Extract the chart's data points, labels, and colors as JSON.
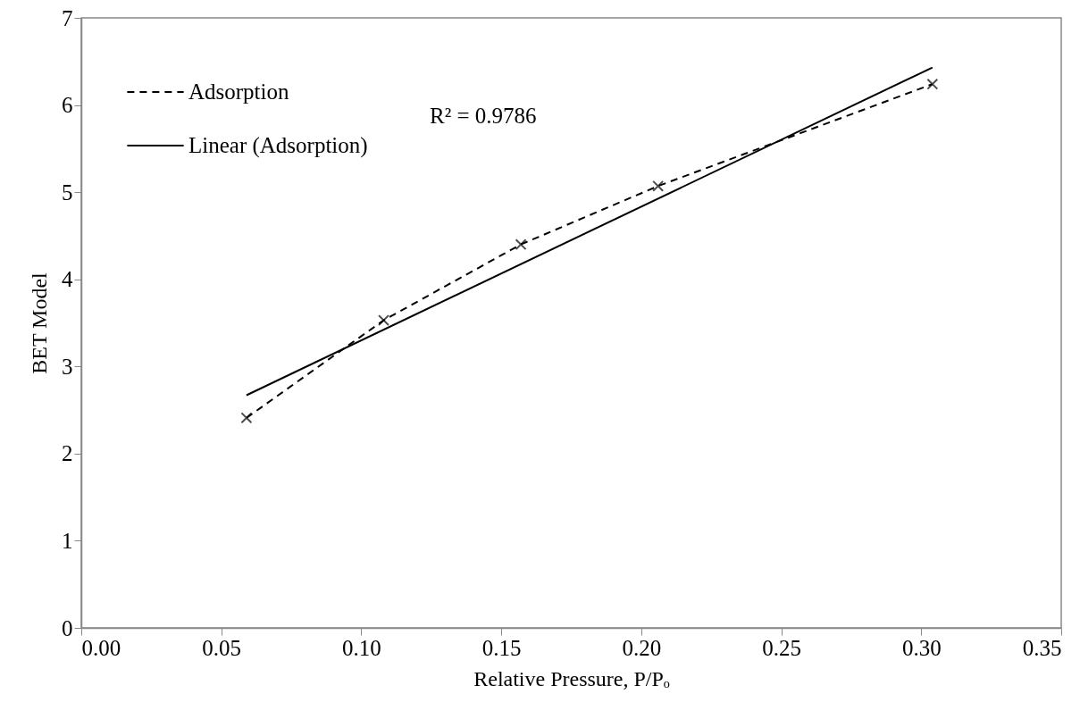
{
  "chart_data": {
    "type": "line",
    "xlabel": "Relative Pressure, P/Pₒ",
    "ylabel": "BET Model",
    "xlim": [
      0,
      0.35
    ],
    "xticks": [
      {
        "value": 0,
        "label": "0.00"
      },
      0.05,
      {
        "value": 0.1,
        "label": "0.10"
      },
      0.15,
      {
        "value": 0.2,
        "label": "0.20"
      },
      0.25,
      {
        "value": 0.3,
        "label": "0.30"
      },
      0.35
    ],
    "ylim": [
      0,
      7
    ],
    "yticks": [
      0,
      1,
      2,
      3,
      4,
      5,
      6,
      7
    ],
    "grid": false,
    "legend": "top left",
    "series": [
      {
        "name": "Adsorption",
        "color": "#000000",
        "x": [
          0.059,
          0.108,
          0.157,
          0.206,
          0.304
        ],
        "values": [
          2.41,
          3.53,
          4.4,
          5.07,
          6.24
        ],
        "marker": "cross",
        "line_style": "dashed"
      },
      {
        "name": "Linear (Adsorption)",
        "type": "line",
        "color": "#000000",
        "x": [
          0.059,
          0.304
        ],
        "values": [
          2.67,
          6.43
        ],
        "marker": "none",
        "line_style": "solid"
      }
    ],
    "annotations": [
      "R² = 0.9786"
    ]
  }
}
